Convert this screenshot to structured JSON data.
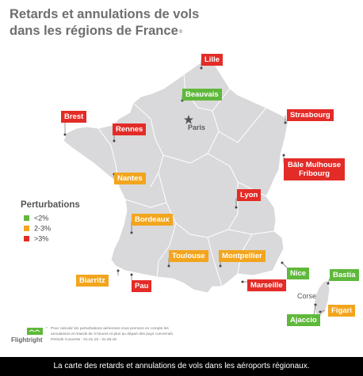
{
  "title_line1": "Retards et annulations de vols",
  "title_line2": "dans les régions de France",
  "title_mark": "®",
  "capital": "Paris",
  "island": "Corse",
  "airports": [
    {
      "name": "Lille",
      "status": "red"
    },
    {
      "name": "Beauvais",
      "status": "green"
    },
    {
      "name": "Brest",
      "status": "red"
    },
    {
      "name": "Rennes",
      "status": "red"
    },
    {
      "name": "Strasbourg",
      "status": "red"
    },
    {
      "name": "Nantes",
      "status": "orange"
    },
    {
      "name": "Lyon",
      "status": "red"
    },
    {
      "name": "Bordeaux",
      "status": "orange"
    },
    {
      "name": "Toulouse",
      "status": "orange"
    },
    {
      "name": "Montpellier",
      "status": "orange"
    },
    {
      "name": "Nice",
      "status": "green"
    },
    {
      "name": "Bastia",
      "status": "green"
    },
    {
      "name": "Biarritz",
      "status": "orange"
    },
    {
      "name": "Pau",
      "status": "red"
    },
    {
      "name": "Marseille",
      "status": "red"
    },
    {
      "name": "Figari",
      "status": "orange"
    },
    {
      "name": "Ajaccio",
      "status": "green"
    }
  ],
  "basel": {
    "line1": "Bâle Mulhouse",
    "line2": "Fribourg",
    "status": "red"
  },
  "legend": {
    "title": "Perturbations",
    "items": [
      {
        "label": "<2%",
        "color": "#5fb83b"
      },
      {
        "label": "2-3%",
        "color": "#f2a51d"
      },
      {
        "label": ">3%",
        "color": "#e32b27"
      }
    ]
  },
  "logo_text": "Flightright",
  "footnote": {
    "marker": "*",
    "line1": "Pour calculer les perturbations aériennes nous prenons en compte les",
    "line2": "annulations et retards de 3 heures et plus au départ des pays concernés.",
    "line3": "Période Couverte : 01.01.18 - 31.08.18"
  },
  "caption": "La carte des retards et annulations de vols dans les aéroports régionaux.",
  "colors": {
    "red": "#e32b27",
    "orange": "#f2a51d",
    "green": "#5fb83b",
    "land": "#d9d9db",
    "title": "#6d6e70"
  }
}
